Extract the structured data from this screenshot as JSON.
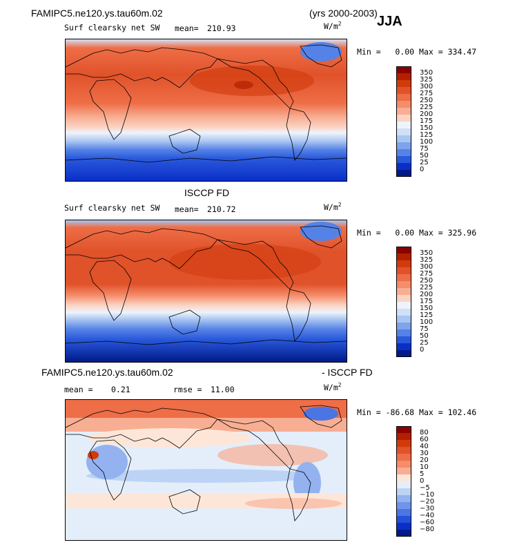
{
  "header": {
    "case_name": "FAMIPC5.ne120.ys.tau60m.02",
    "years": "(yrs 2000-2003)",
    "season": "JJA"
  },
  "units": "W/m",
  "units_sup": "2",
  "chart_data": [
    {
      "type": "heatmap",
      "name": "model",
      "title": "Surf clearsky net SW",
      "mean_label": "mean=",
      "mean": "210.93",
      "min_label": "Min =",
      "min": "0.00",
      "max_label": "Max =",
      "max": "334.47",
      "levels": [
        "350",
        "325",
        "300",
        "275",
        "250",
        "225",
        "200",
        "175",
        "150",
        "125",
        "100",
        "75",
        "50",
        "25",
        "0"
      ],
      "colors": [
        "#8b0000",
        "#b32000",
        "#d13b0c",
        "#e0522a",
        "#ee6e47",
        "#f58c6a",
        "#f8ae93",
        "#fbd3c3",
        "#eef3fb",
        "#cfe0f7",
        "#a9c6f2",
        "#7fa3ec",
        "#5582e6",
        "#2a59db",
        "#0a2fc8",
        "#001a8a"
      ]
    },
    {
      "type": "heatmap",
      "name": "obs",
      "section_title": "ISCCP FD",
      "title": "Surf clearsky net SW",
      "mean_label": "mean=",
      "mean": "210.72",
      "min_label": "Min =",
      "min": "0.00",
      "max_label": "Max =",
      "max": "325.96",
      "levels": [
        "350",
        "325",
        "300",
        "275",
        "250",
        "225",
        "200",
        "175",
        "150",
        "125",
        "100",
        "75",
        "50",
        "25",
        "0"
      ],
      "colors": [
        "#8b0000",
        "#b32000",
        "#d13b0c",
        "#e0522a",
        "#ee6e47",
        "#f58c6a",
        "#f8ae93",
        "#fbd3c3",
        "#eef3fb",
        "#cfe0f7",
        "#a9c6f2",
        "#7fa3ec",
        "#5582e6",
        "#2a59db",
        "#0a2fc8",
        "#001a8a"
      ]
    },
    {
      "type": "heatmap",
      "name": "diff",
      "section_left": "FAMIPC5.ne120.ys.tau60m.02",
      "section_right": "- ISCCP FD",
      "mean_label": "mean =",
      "mean": "0.21",
      "rmse_label": "rmse =",
      "rmse": "11.00",
      "min_label": "Min =",
      "min": "-86.68",
      "max_label": "Max =",
      "max": "102.46",
      "levels": [
        "80",
        "60",
        "40",
        "30",
        "20",
        "10",
        "5",
        "0",
        "−5",
        "−10",
        "−20",
        "−30",
        "−40",
        "−60",
        "−80"
      ],
      "colors": [
        "#8b0000",
        "#b32000",
        "#d13b0c",
        "#e0522a",
        "#ee6e47",
        "#f58c6a",
        "#f8ae93",
        "#fde6d8",
        "#e4eefb",
        "#bcd3f5",
        "#93b2ef",
        "#6f95ea",
        "#4a75e3",
        "#2550d8",
        "#0a2fc8",
        "#001a8a"
      ]
    }
  ]
}
